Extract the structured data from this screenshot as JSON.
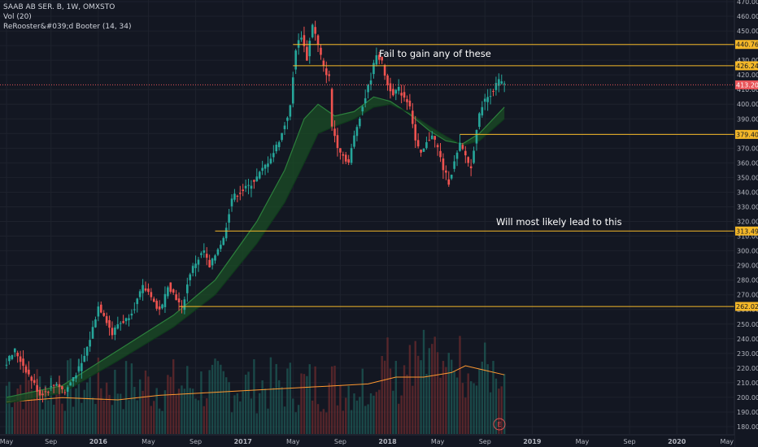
{
  "header": {
    "symbol_line": "SAAB AB SER. B, 1W, OMXSTO",
    "vol_line": "Vol (20)",
    "indicator_line": "ReRooster&#039;d Booter (14, 34)"
  },
  "annotations": {
    "top": "Fail to gain any of these",
    "bottom": "Will most likely lead to this"
  },
  "earnings_marker": "E",
  "colors": {
    "background": "#131722",
    "up": "#26a69a",
    "down": "#ef5350",
    "level_line": "#f5b828",
    "current_price": "#e8555a",
    "grid": "#1e222d",
    "axis_text": "#b2b5be",
    "volume_ma": "#ff9830",
    "ema_fast": "#2c7f3c",
    "ema_slow": "#1b4d26"
  },
  "chart_data": {
    "type": "candlestick",
    "title": "SAAB AB SER. B, 1W, OMXSTO",
    "y_axis": {
      "min": 175,
      "max": 475,
      "ticks": [
        180,
        190,
        200,
        210,
        220,
        230,
        240,
        250,
        260,
        270,
        280,
        290,
        300,
        310,
        320,
        330,
        340,
        350,
        360,
        370,
        380,
        390,
        400,
        410,
        420,
        430,
        440,
        450,
        460,
        470
      ],
      "labels": [
        "180.00",
        "190.00",
        "200.00",
        "210.00",
        "220.00",
        "230.00",
        "240.00",
        "250.00",
        "260.00",
        "270.00",
        "280.00",
        "290.00",
        "300.00",
        "310.00",
        "320.00",
        "330.00",
        "340.00",
        "350.00",
        "360.00",
        "370.00",
        "380.00",
        "390.00",
        "400.00",
        "410.00",
        "420.00",
        "430.00",
        "440.00",
        "450.00",
        "460.00",
        "470.00"
      ]
    },
    "x_axis": {
      "labels": [
        "May",
        "Sep",
        "2016",
        "May",
        "Sep",
        "2017",
        "May",
        "Sep",
        "2018",
        "May",
        "Sep",
        "2019",
        "May",
        "Sep",
        "2020",
        "May"
      ],
      "label_weeks": [
        0,
        16,
        33,
        51,
        68,
        85,
        103,
        120,
        137,
        155,
        172,
        189,
        207,
        224,
        241,
        259
      ]
    },
    "horizontal_levels": [
      {
        "value": 440.76,
        "label": "440.76",
        "from_week": 103
      },
      {
        "value": 426.24,
        "label": "426.24",
        "from_week": 103
      },
      {
        "value": 379.4,
        "label": "379.40",
        "from_week": 163
      },
      {
        "value": 313.49,
        "label": "313.49",
        "from_week": 75
      },
      {
        "value": 262.02,
        "label": "262.02",
        "from_week": 62
      }
    ],
    "current_price": {
      "value": 413.2,
      "label": "413.20"
    },
    "weekly_close_path": [
      [
        0,
        224
      ],
      [
        3,
        232
      ],
      [
        6,
        222
      ],
      [
        9,
        212
      ],
      [
        12,
        202
      ],
      [
        15,
        205
      ],
      [
        18,
        210
      ],
      [
        21,
        203
      ],
      [
        24,
        214
      ],
      [
        27,
        222
      ],
      [
        30,
        240
      ],
      [
        33,
        262
      ],
      [
        35,
        257
      ],
      [
        38,
        243
      ],
      [
        40,
        250
      ],
      [
        43,
        253
      ],
      [
        46,
        262
      ],
      [
        49,
        275
      ],
      [
        52,
        270
      ],
      [
        54,
        260
      ],
      [
        56,
        262
      ],
      [
        58,
        277
      ],
      [
        61,
        268
      ],
      [
        63,
        260
      ],
      [
        66,
        285
      ],
      [
        68,
        292
      ],
      [
        71,
        300
      ],
      [
        73,
        288
      ],
      [
        76,
        302
      ],
      [
        78,
        308
      ],
      [
        81,
        336
      ],
      [
        84,
        340
      ],
      [
        87,
        344
      ],
      [
        90,
        350
      ],
      [
        93,
        358
      ],
      [
        96,
        367
      ],
      [
        99,
        380
      ],
      [
        102,
        398
      ],
      [
        104,
        438
      ],
      [
        106,
        447
      ],
      [
        108,
        431
      ],
      [
        110,
        455
      ],
      [
        112,
        440
      ],
      [
        114,
        425
      ],
      [
        116,
        418
      ],
      [
        117,
        385
      ],
      [
        119,
        372
      ],
      [
        121,
        365
      ],
      [
        123,
        360
      ],
      [
        125,
        378
      ],
      [
        127,
        392
      ],
      [
        129,
        405
      ],
      [
        131,
        418
      ],
      [
        133,
        435
      ],
      [
        135,
        428
      ],
      [
        137,
        413
      ],
      [
        139,
        408
      ],
      [
        141,
        410
      ],
      [
        143,
        405
      ],
      [
        145,
        400
      ],
      [
        147,
        375
      ],
      [
        149,
        365
      ],
      [
        151,
        373
      ],
      [
        153,
        380
      ],
      [
        155,
        370
      ],
      [
        157,
        356
      ],
      [
        159,
        347
      ],
      [
        161,
        360
      ],
      [
        163,
        372
      ],
      [
        165,
        365
      ],
      [
        167,
        356
      ],
      [
        169,
        384
      ],
      [
        171,
        400
      ],
      [
        173,
        405
      ],
      [
        175,
        410
      ],
      [
        177,
        416
      ],
      [
        179,
        413
      ]
    ],
    "ema_band": {
      "fast": [
        [
          0,
          200
        ],
        [
          20,
          208
        ],
        [
          40,
          232
        ],
        [
          60,
          256
        ],
        [
          75,
          280
        ],
        [
          90,
          320
        ],
        [
          100,
          355
        ],
        [
          107,
          390
        ],
        [
          112,
          400
        ],
        [
          118,
          392
        ],
        [
          125,
          395
        ],
        [
          132,
          405
        ],
        [
          138,
          402
        ],
        [
          145,
          393
        ],
        [
          152,
          382
        ],
        [
          158,
          375
        ],
        [
          164,
          373
        ],
        [
          170,
          380
        ],
        [
          179,
          398
        ]
      ],
      "slow": [
        [
          0,
          196
        ],
        [
          20,
          203
        ],
        [
          40,
          225
        ],
        [
          60,
          248
        ],
        [
          75,
          270
        ],
        [
          90,
          305
        ],
        [
          100,
          333
        ],
        [
          107,
          360
        ],
        [
          112,
          380
        ],
        [
          118,
          385
        ],
        [
          125,
          390
        ],
        [
          132,
          398
        ],
        [
          138,
          400
        ],
        [
          145,
          394
        ],
        [
          152,
          385
        ],
        [
          158,
          378
        ],
        [
          164,
          372
        ],
        [
          170,
          375
        ],
        [
          179,
          390
        ]
      ]
    },
    "volume_ma_path": [
      [
        0,
        0.28
      ],
      [
        20,
        0.32
      ],
      [
        40,
        0.3
      ],
      [
        55,
        0.34
      ],
      [
        70,
        0.36
      ],
      [
        85,
        0.38
      ],
      [
        100,
        0.4
      ],
      [
        115,
        0.42
      ],
      [
        130,
        0.44
      ],
      [
        140,
        0.5
      ],
      [
        150,
        0.5
      ],
      [
        160,
        0.54
      ],
      [
        165,
        0.6
      ],
      [
        172,
        0.56
      ],
      [
        179,
        0.52
      ]
    ]
  }
}
